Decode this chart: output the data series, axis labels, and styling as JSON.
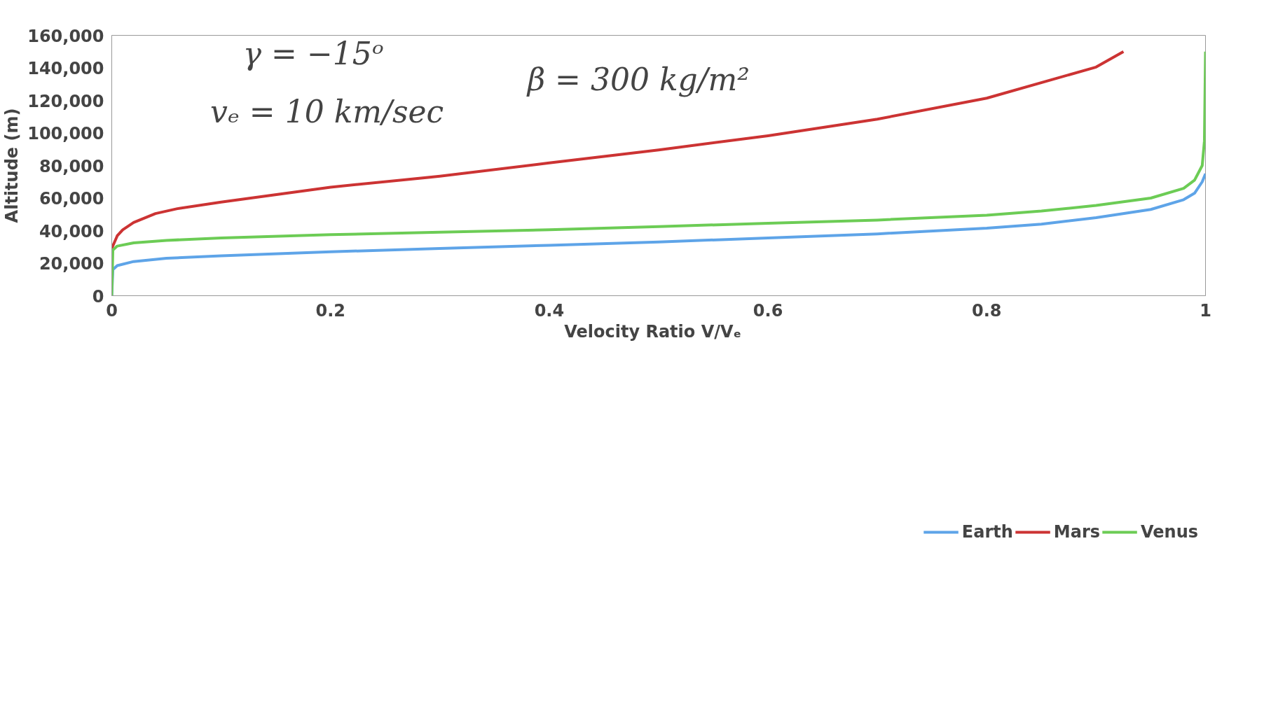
{
  "chart_data": {
    "type": "line",
    "xlabel": "Velocity Ratio   V/Vₑ",
    "ylabel": "Altitude (m)",
    "xlim": [
      0,
      1
    ],
    "ylim": [
      0,
      160000
    ],
    "xticks": [
      0,
      0.2,
      0.4,
      0.6,
      0.8,
      1
    ],
    "yticks": [
      {
        "value": 0,
        "label": "0"
      },
      {
        "value": 20000,
        "label": "20,000"
      },
      {
        "value": 40000,
        "label": "40,000"
      },
      {
        "value": 60000,
        "label": "60,000"
      },
      {
        "value": 80000,
        "label": "80,000"
      },
      {
        "value": 100000,
        "label": "100,000"
      },
      {
        "value": 120000,
        "label": "120,000"
      },
      {
        "value": 140000,
        "label": "140,000"
      },
      {
        "value": 160000,
        "label": "160,000"
      }
    ],
    "grid": false,
    "legend": "bottom",
    "marker": "none",
    "line_style": "solid",
    "annotations": [
      "γ = −15ᵒ",
      "vₑ = 10 km/sec",
      "β = 300 kg/m²"
    ],
    "series": [
      {
        "name": "Earth",
        "color": "#5ea4e8",
        "x": [
          0,
          0.001,
          0.005,
          0.02,
          0.05,
          0.1,
          0.2,
          0.3,
          0.4,
          0.5,
          0.6,
          0.7,
          0.8,
          0.85,
          0.9,
          0.95,
          0.98,
          0.99,
          0.997,
          1
        ],
        "values": [
          0,
          16000,
          18500,
          21000,
          23000,
          24500,
          27000,
          29000,
          31000,
          33000,
          35500,
          38000,
          41500,
          44000,
          48000,
          53000,
          59000,
          63000,
          70000,
          75000
        ]
      },
      {
        "name": "Mars",
        "color": "#cc3333",
        "x": [
          0,
          0.005,
          0.01,
          0.02,
          0.04,
          0.06,
          0.1,
          0.2,
          0.3,
          0.4,
          0.5,
          0.6,
          0.7,
          0.8,
          0.9,
          0.925
        ],
        "values": [
          29000,
          36800,
          40500,
          45000,
          50500,
          53500,
          57500,
          66700,
          73400,
          81600,
          89600,
          98300,
          108500,
          121400,
          140500,
          150000
        ]
      },
      {
        "name": "Venus",
        "color": "#6ccc55",
        "x": [
          0,
          0.001,
          0.005,
          0.02,
          0.05,
          0.1,
          0.2,
          0.3,
          0.4,
          0.5,
          0.6,
          0.7,
          0.8,
          0.85,
          0.9,
          0.95,
          0.98,
          0.99,
          0.997,
          0.999,
          1
        ],
        "values": [
          0,
          28000,
          30500,
          32500,
          34000,
          35500,
          37500,
          39000,
          40500,
          42500,
          44500,
          46500,
          49500,
          52000,
          55500,
          60000,
          66000,
          71000,
          80000,
          95000,
          150000
        ]
      }
    ]
  }
}
